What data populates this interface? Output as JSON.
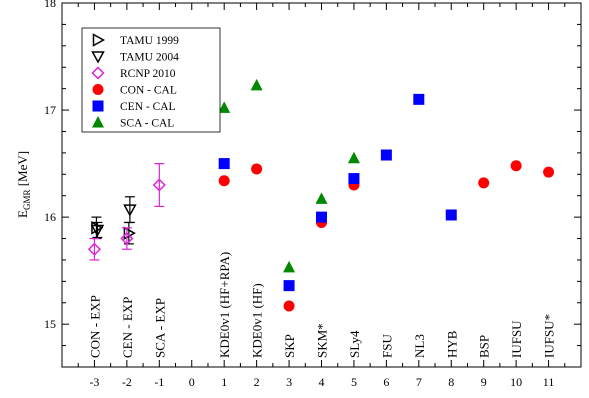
{
  "chart_data": {
    "type": "scatter",
    "xlim": [
      -4,
      12
    ],
    "ylim": [
      14.6,
      18
    ],
    "xticks": [
      -3,
      -2,
      -1,
      0,
      1,
      2,
      3,
      4,
      5,
      6,
      7,
      8,
      9,
      10,
      11
    ],
    "yticks": [
      15,
      16,
      17,
      18
    ],
    "ylabel_main": "E",
    "ylabel_sub": "GMR",
    "ylabel_unit": "[MeV]",
    "grid": false,
    "legend_position": "top-left",
    "category_labels": [
      {
        "x": -3,
        "label": "CON - EXP"
      },
      {
        "x": -2,
        "label": "CEN - EXP"
      },
      {
        "x": -1,
        "label": "SCA - EXP"
      },
      {
        "x": 1,
        "label": "KDE0v1 (HF+RPA)"
      },
      {
        "x": 2,
        "label": "KDE0v1 (HF)"
      },
      {
        "x": 3,
        "label": "SKP"
      },
      {
        "x": 4,
        "label": "SKM*"
      },
      {
        "x": 5,
        "label": "SLy4"
      },
      {
        "x": 6,
        "label": "FSU"
      },
      {
        "x": 7,
        "label": "NL3"
      },
      {
        "x": 8,
        "label": "HYB"
      },
      {
        "x": 9,
        "label": "BSP"
      },
      {
        "x": 10,
        "label": "IUFSU"
      },
      {
        "x": 11,
        "label": "IUFSU*"
      }
    ],
    "series": [
      {
        "name": "TAMU 1999",
        "marker": "triangle-right-open",
        "color": "#000000",
        "points": [
          {
            "x": -3,
            "y": 15.9,
            "err": 0.1
          },
          {
            "x": -2,
            "y": 15.85,
            "err": 0.1
          }
        ]
      },
      {
        "name": "TAMU 2004",
        "marker": "triangle-down-open",
        "color": "#000000",
        "points": [
          {
            "x": -3,
            "y": 15.88,
            "err": 0.07
          },
          {
            "x": -2,
            "y": 16.07,
            "err": 0.12
          }
        ]
      },
      {
        "name": "RCNP  2010",
        "marker": "diamond-open",
        "color": "#dd22dd",
        "points": [
          {
            "x": -3,
            "y": 15.7,
            "err": 0.1
          },
          {
            "x": -2,
            "y": 15.8,
            "err": 0.1
          },
          {
            "x": -1,
            "y": 16.3,
            "err": 0.2
          }
        ]
      },
      {
        "name": "CON - CAL",
        "marker": "circle",
        "color": "#ff0000",
        "points": [
          {
            "x": 1,
            "y": 16.34
          },
          {
            "x": 2,
            "y": 16.45
          },
          {
            "x": 3,
            "y": 15.17
          },
          {
            "x": 4,
            "y": 15.95
          },
          {
            "x": 5,
            "y": 16.3
          },
          {
            "x": 9,
            "y": 16.32
          },
          {
            "x": 10,
            "y": 16.48
          },
          {
            "x": 11,
            "y": 16.42
          }
        ]
      },
      {
        "name": "CEN - CAL",
        "marker": "square",
        "color": "#0000ff",
        "points": [
          {
            "x": 1,
            "y": 16.5
          },
          {
            "x": 3,
            "y": 15.36
          },
          {
            "x": 4,
            "y": 16.0
          },
          {
            "x": 5,
            "y": 16.36
          },
          {
            "x": 6,
            "y": 16.58
          },
          {
            "x": 7,
            "y": 17.1
          },
          {
            "x": 8,
            "y": 16.02
          }
        ]
      },
      {
        "name": "SCA - CAL",
        "marker": "triangle-up",
        "color": "#008800",
        "points": [
          {
            "x": 1,
            "y": 17.02
          },
          {
            "x": 2,
            "y": 17.23
          },
          {
            "x": 3,
            "y": 15.53
          },
          {
            "x": 4,
            "y": 16.17
          },
          {
            "x": 5,
            "y": 16.55
          }
        ]
      }
    ]
  }
}
